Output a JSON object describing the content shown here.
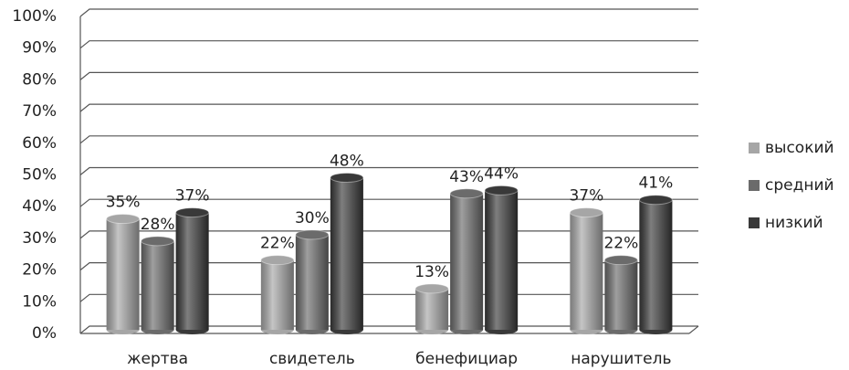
{
  "chart_data": {
    "type": "bar",
    "categories": [
      "жертва",
      "свидетель",
      "бенефициар",
      "нарушитель"
    ],
    "series": [
      {
        "name": "высокий",
        "color": "#a6a6a6",
        "values": [
          35,
          22,
          13,
          37
        ],
        "value_labels": [
          "35%",
          "22%",
          "13%",
          "37%"
        ]
      },
      {
        "name": "средний",
        "color": "#6b6b6b",
        "values": [
          28,
          30,
          43,
          22
        ],
        "value_labels": [
          "28%",
          "30%",
          "43%",
          "22%"
        ]
      },
      {
        "name": "низкий",
        "color": "#393939",
        "values": [
          37,
          48,
          44,
          41
        ],
        "value_labels": [
          "37%",
          "48%",
          "44%",
          "41%"
        ]
      }
    ],
    "ylim": [
      0,
      100
    ],
    "yticks": [
      {
        "value": 0,
        "label": "0%"
      },
      {
        "value": 10,
        "label": "10%"
      },
      {
        "value": 20,
        "label": "20%"
      },
      {
        "value": 30,
        "label": "30%"
      },
      {
        "value": 40,
        "label": "40%"
      },
      {
        "value": 50,
        "label": "50%"
      },
      {
        "value": 60,
        "label": "60%"
      },
      {
        "value": 70,
        "label": "70%"
      },
      {
        "value": 80,
        "label": "80%"
      },
      {
        "value": 90,
        "label": "90%"
      },
      {
        "value": 100,
        "label": "100%"
      }
    ],
    "grid": true,
    "legend": "right"
  }
}
